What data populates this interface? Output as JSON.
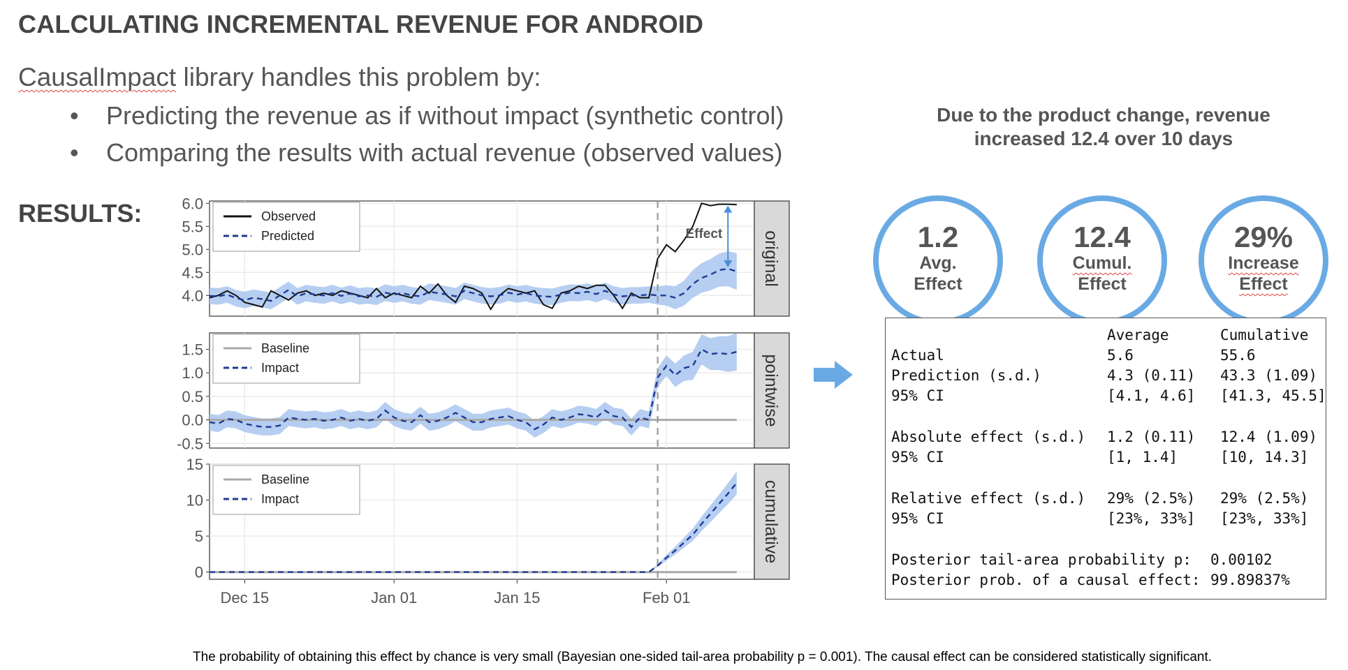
{
  "header": {
    "title": "CALCULATING INCREMENTAL REVENUE FOR ANDROID",
    "intro_lib": "CausalImpact",
    "intro_rest": " library handles this problem by:",
    "bullets": [
      "Predicting the revenue as if without impact (synthetic control)",
      "Comparing the results with actual revenue (observed values)"
    ],
    "results_label": "RESULTS:"
  },
  "summary": {
    "headline_line1": "Due to the product change, revenue",
    "headline_line2": "increased 12.4 over 10 days",
    "circles": [
      {
        "value": "1.2",
        "line1": "Avg.",
        "line2": "Effect"
      },
      {
        "value": "12.4",
        "line1": "Cumul.",
        "line2": "Effect"
      },
      {
        "value": "29%",
        "line1": "Increase",
        "line2": "Effect"
      }
    ],
    "table": {
      "col_headers": [
        "Average",
        "Cumulative"
      ],
      "rows": [
        {
          "label": "Actual",
          "avg": "5.6",
          "cum": "55.6"
        },
        {
          "label": "Prediction (s.d.)",
          "avg": "4.3 (0.11)",
          "cum": "43.3 (1.09)"
        },
        {
          "label": "95% CI",
          "avg": "[4.1, 4.6]",
          "cum": "[41.3, 45.5]"
        },
        {
          "label": "Absolute effect (s.d.)",
          "avg": "1.2 (0.11)",
          "cum": "12.4 (1.09)"
        },
        {
          "label": "95% CI",
          "avg": "[1, 1.4]",
          "cum": "[10, 14.3]"
        },
        {
          "label": "Relative effect (s.d.)",
          "avg": "29% (2.5%)",
          "cum": "29% (2.5%)"
        },
        {
          "label": "95% CI",
          "avg": "[23%, 33%]",
          "cum": "[23%, 33%]"
        }
      ],
      "tail_label": "Posterior tail-area probability p:",
      "tail_value": "0.00102",
      "prob_label": "Posterior prob. of a causal effect:",
      "prob_value": "99.89837%"
    }
  },
  "footnote": "The probability of obtaining this effect by chance is very small (Bayesian one-sided tail-area probability p = 0.001). The causal effect can be considered statistically significant.",
  "colors": {
    "band": "#a9c6ee",
    "predicted": "#1f3a93",
    "observed": "#111111",
    "baseline": "#aaaaaa",
    "accent": "#6aaae4",
    "strip": "#d9d9d9"
  },
  "chart_data": {
    "type": "line",
    "x_ticks": [
      "Dec 15",
      "Jan 01",
      "Jan 15",
      "Feb 01"
    ],
    "x_tick_days": [
      4,
      21,
      35,
      52
    ],
    "x_range": [
      0,
      62
    ],
    "intervention_day": 51,
    "panels": [
      {
        "strip": "original",
        "ylim": [
          3.55,
          6.05
        ],
        "y_ticks": [
          4.0,
          4.5,
          5.0,
          5.5,
          6.0
        ],
        "y_tick_labels": [
          "4.0",
          "4.5",
          "5.0",
          "5.5",
          "6.0"
        ],
        "legend": [
          "Observed",
          "Predicted"
        ],
        "annotation": "Effect",
        "series": [
          {
            "name": "Observed",
            "values": [
              3.95,
              4.0,
              4.1,
              4.0,
              3.85,
              3.8,
              3.75,
              4.1,
              4.0,
              3.9,
              4.05,
              4.1,
              4.0,
              4.05,
              4.0,
              4.1,
              4.05,
              4.0,
              3.95,
              4.15,
              3.95,
              4.05,
              4.0,
              3.95,
              4.2,
              4.05,
              4.25,
              4.0,
              3.85,
              4.2,
              4.15,
              4.05,
              3.7,
              4.0,
              4.15,
              4.1,
              4.05,
              4.1,
              3.8,
              3.72,
              4.05,
              4.1,
              4.2,
              4.15,
              4.22,
              4.22,
              4.0,
              3.72,
              4.05,
              3.95,
              3.95,
              4.8,
              5.1,
              4.95,
              5.2,
              5.5,
              6.0,
              5.95,
              5.98,
              5.98,
              5.97
            ]
          },
          {
            "name": "Predicted",
            "values": [
              3.99,
              3.98,
              4.02,
              3.94,
              3.9,
              3.95,
              3.92,
              3.88,
              4.0,
              4.12,
              3.98,
              4.05,
              4.02,
              4.0,
              4.05,
              3.99,
              4.04,
              3.98,
              4.0,
              3.97,
              4.06,
              4.02,
              4.05,
              4.0,
              3.98,
              4.08,
              4.05,
              4.02,
              3.98,
              4.1,
              4.05,
              4.0,
              3.98,
              4.0,
              4.06,
              4.02,
              4.05,
              4.0,
              3.98,
              3.97,
              4.02,
              4.06,
              4.05,
              4.08,
              4.03,
              4.1,
              4.02,
              3.98,
              4.0,
              4.0,
              4.02,
              4.0,
              4.0,
              3.95,
              4.05,
              4.25,
              4.38,
              4.45,
              4.55,
              4.58,
              4.52
            ]
          }
        ],
        "band_halfwidth": [
          0.18,
          0.18,
          0.18,
          0.18,
          0.18,
          0.18,
          0.18,
          0.18,
          0.18,
          0.18,
          0.18,
          0.18,
          0.18,
          0.18,
          0.18,
          0.18,
          0.18,
          0.18,
          0.18,
          0.18,
          0.18,
          0.18,
          0.18,
          0.18,
          0.18,
          0.18,
          0.18,
          0.18,
          0.18,
          0.18,
          0.18,
          0.18,
          0.18,
          0.18,
          0.18,
          0.18,
          0.18,
          0.18,
          0.18,
          0.18,
          0.18,
          0.18,
          0.18,
          0.18,
          0.18,
          0.18,
          0.18,
          0.18,
          0.18,
          0.18,
          0.18,
          0.2,
          0.22,
          0.25,
          0.27,
          0.3,
          0.32,
          0.34,
          0.36,
          0.38,
          0.4
        ]
      },
      {
        "strip": "pointwise",
        "ylim": [
          -0.6,
          1.85
        ],
        "y_ticks": [
          -0.5,
          0.0,
          0.5,
          1.0,
          1.5
        ],
        "y_tick_labels": [
          "-0.5",
          "0.0",
          "0.5",
          "1.0",
          "1.5"
        ],
        "legend": [
          "Baseline",
          "Impact"
        ],
        "series": [
          {
            "name": "Impact",
            "values": [
              -0.05,
              -0.08,
              0.02,
              0.0,
              -0.08,
              -0.12,
              -0.15,
              -0.15,
              -0.12,
              0.05,
              0.02,
              0.0,
              0.02,
              -0.02,
              0.0,
              0.05,
              -0.02,
              0.02,
              -0.02,
              0.02,
              0.2,
              0.05,
              -0.02,
              -0.05,
              0.1,
              -0.05,
              -0.02,
              0.05,
              0.15,
              0.05,
              -0.05,
              -0.05,
              0.02,
              0.05,
              0.08,
              0.0,
              -0.05,
              -0.2,
              -0.1,
              0.05,
              0.0,
              0.05,
              0.12,
              0.1,
              0.05,
              0.2,
              0.08,
              0.05,
              -0.15,
              0.05,
              0.0,
              0.9,
              1.15,
              0.95,
              1.1,
              1.15,
              1.5,
              1.4,
              1.42,
              1.4,
              1.45
            ]
          }
        ],
        "baseline": 0,
        "band_halfwidth": [
          0.18,
          0.18,
          0.18,
          0.18,
          0.18,
          0.18,
          0.18,
          0.18,
          0.18,
          0.18,
          0.18,
          0.18,
          0.18,
          0.18,
          0.18,
          0.18,
          0.18,
          0.18,
          0.18,
          0.18,
          0.18,
          0.18,
          0.18,
          0.18,
          0.18,
          0.18,
          0.18,
          0.18,
          0.18,
          0.18,
          0.18,
          0.18,
          0.18,
          0.18,
          0.18,
          0.18,
          0.18,
          0.18,
          0.18,
          0.18,
          0.18,
          0.18,
          0.18,
          0.18,
          0.18,
          0.18,
          0.18,
          0.18,
          0.18,
          0.18,
          0.18,
          0.2,
          0.22,
          0.25,
          0.27,
          0.3,
          0.32,
          0.34,
          0.36,
          0.38,
          0.4
        ]
      },
      {
        "strip": "cumulative",
        "ylim": [
          -1,
          15
        ],
        "y_ticks": [
          0,
          5,
          10,
          15
        ],
        "y_tick_labels": [
          "0",
          "5",
          "10",
          "15"
        ],
        "legend": [
          "Baseline",
          "Impact"
        ],
        "series": [
          {
            "name": "Impact",
            "values": [
              0,
              0,
              0,
              0,
              0,
              0,
              0,
              0,
              0,
              0,
              0,
              0,
              0,
              0,
              0,
              0,
              0,
              0,
              0,
              0,
              0,
              0,
              0,
              0,
              0,
              0,
              0,
              0,
              0,
              0,
              0,
              0,
              0,
              0,
              0,
              0,
              0,
              0,
              0,
              0,
              0,
              0,
              0,
              0,
              0,
              0,
              0,
              0,
              0,
              0,
              0,
              0.9,
              2.0,
              3.0,
              4.1,
              5.2,
              6.7,
              8.1,
              9.5,
              10.9,
              12.4
            ]
          }
        ],
        "baseline": 0,
        "band_halfwidth": [
          0,
          0,
          0,
          0,
          0,
          0,
          0,
          0,
          0,
          0,
          0,
          0,
          0,
          0,
          0,
          0,
          0,
          0,
          0,
          0,
          0,
          0,
          0,
          0,
          0,
          0,
          0,
          0,
          0,
          0,
          0,
          0,
          0,
          0,
          0,
          0,
          0,
          0,
          0,
          0,
          0,
          0,
          0,
          0,
          0,
          0,
          0,
          0,
          0,
          0,
          0,
          0.2,
          0.4,
          0.55,
          0.7,
          0.85,
          1.0,
          1.15,
          1.3,
          1.45,
          1.6
        ]
      }
    ]
  }
}
